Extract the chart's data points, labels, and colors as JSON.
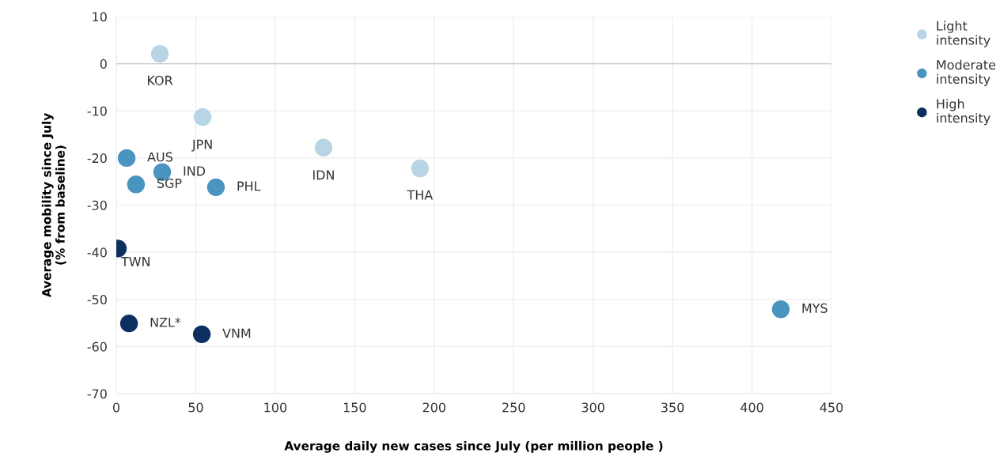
{
  "chart_data": {
    "type": "scatter",
    "xlabel": "Average daily new cases since July (per million people )",
    "ylabel": "Average mobility since July\n(% from baseline)",
    "xlim": [
      0,
      450
    ],
    "xticks": [
      0,
      50,
      100,
      150,
      200,
      250,
      300,
      350,
      400,
      450
    ],
    "ylim": [
      -70,
      10
    ],
    "yticks": [
      -70,
      -60,
      -50,
      -40,
      -30,
      -20,
      -10,
      0,
      10
    ],
    "grid": true,
    "legend": "top right",
    "marker": "circle",
    "ref_lines": [
      {
        "axis": "y",
        "value": 0,
        "color": "#c8c8c8"
      }
    ],
    "series": [
      {
        "name": "Light intensity",
        "color": "#b7d5e5",
        "x": [
          27.4,
          54.3,
          130.4,
          191.1
        ],
        "values": [
          2.1,
          -11.3,
          -17.8,
          -22.2
        ]
      },
      {
        "name": "Moderate intensity",
        "color": "#4a94c0",
        "x": [
          6.5,
          28.9,
          12.4,
          62.7,
          418.1
        ],
        "values": [
          -20.0,
          -23.0,
          -25.6,
          -26.2,
          -52.1
        ]
      },
      {
        "name": "High intensity",
        "color": "#0b2f5e",
        "x": [
          1.0,
          8.0,
          53.8
        ],
        "values": [
          -39.2,
          -55.1,
          -57.4
        ]
      }
    ],
    "annotations": [
      {
        "text": "KOR",
        "x": 27.4,
        "y": 2.1
      },
      {
        "text": "JPN",
        "x": 54.3,
        "y": -11.3
      },
      {
        "text": "IDN",
        "x": 130.4,
        "y": -17.8
      },
      {
        "text": "THA",
        "x": 191.1,
        "y": -22.2
      },
      {
        "text": "AUS",
        "x": 6.5,
        "y": -20.0
      },
      {
        "text": "IND",
        "x": 28.9,
        "y": -23.0
      },
      {
        "text": "SGP",
        "x": 12.4,
        "y": -25.6
      },
      {
        "text": "PHL",
        "x": 62.7,
        "y": -26.2
      },
      {
        "text": "MYS",
        "x": 418.1,
        "y": -52.1
      },
      {
        "text": "TWN",
        "x": 1.0,
        "y": -39.2
      },
      {
        "text": "NZL*",
        "x": 8.0,
        "y": -55.1
      },
      {
        "text": "VNM",
        "x": 53.8,
        "y": -57.4
      }
    ]
  }
}
